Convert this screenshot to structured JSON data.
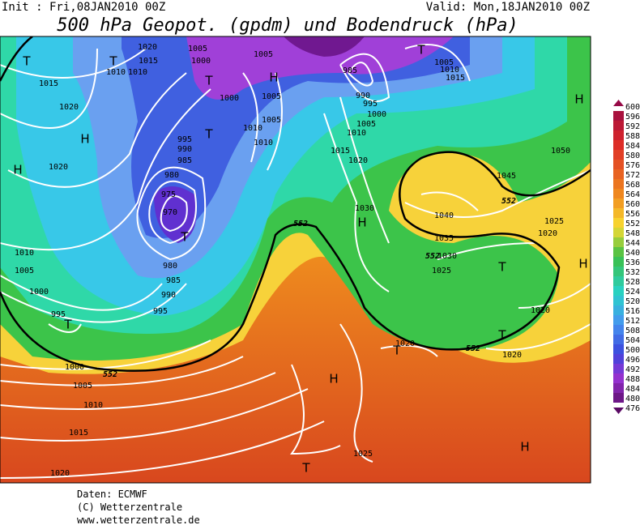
{
  "header": {
    "init": "Init : Fri,08JAN2010 00Z",
    "valid": "Valid: Mon,18JAN2010 00Z",
    "title": "500 hPa Geopot. (gpdm) und Bodendruck (hPa)"
  },
  "map": {
    "centers": [
      "H",
      "H",
      "H",
      "H",
      "H",
      "H",
      "H",
      "H",
      "T",
      "T",
      "T",
      "T",
      "T",
      "T",
      "T",
      "T",
      "T",
      "T",
      "T"
    ],
    "pressure_labels": [
      1015,
      1020,
      1020,
      1010,
      1005,
      1000,
      995,
      1000,
      1005,
      1010,
      1015,
      1020,
      975,
      970,
      980,
      985,
      990,
      995,
      980,
      985,
      990,
      995,
      1000,
      1005,
      1005,
      1010,
      1010,
      1015,
      1020,
      1030,
      1040,
      1035,
      1030,
      1025,
      1025,
      1020,
      1020,
      1020,
      1020,
      1025,
      1045,
      1050,
      985,
      990,
      995,
      1000,
      1005,
      1010,
      1005,
      1010,
      1015,
      1005,
      1000,
      1005,
      1020,
      1015,
      1010,
      1010
    ],
    "contour_labels": [
      552,
      552,
      552,
      552,
      552
    ]
  },
  "legend": {
    "values": [
      600,
      596,
      592,
      588,
      584,
      580,
      576,
      572,
      568,
      564,
      560,
      556,
      552,
      548,
      544,
      540,
      536,
      532,
      528,
      524,
      520,
      516,
      512,
      508,
      504,
      500,
      496,
      492,
      488,
      484,
      480,
      476
    ]
  },
  "footer": {
    "lines": [
      "Daten: ECMWF",
      "(C) Wetterzentrale",
      "www.wetterzentrale.de"
    ]
  }
}
